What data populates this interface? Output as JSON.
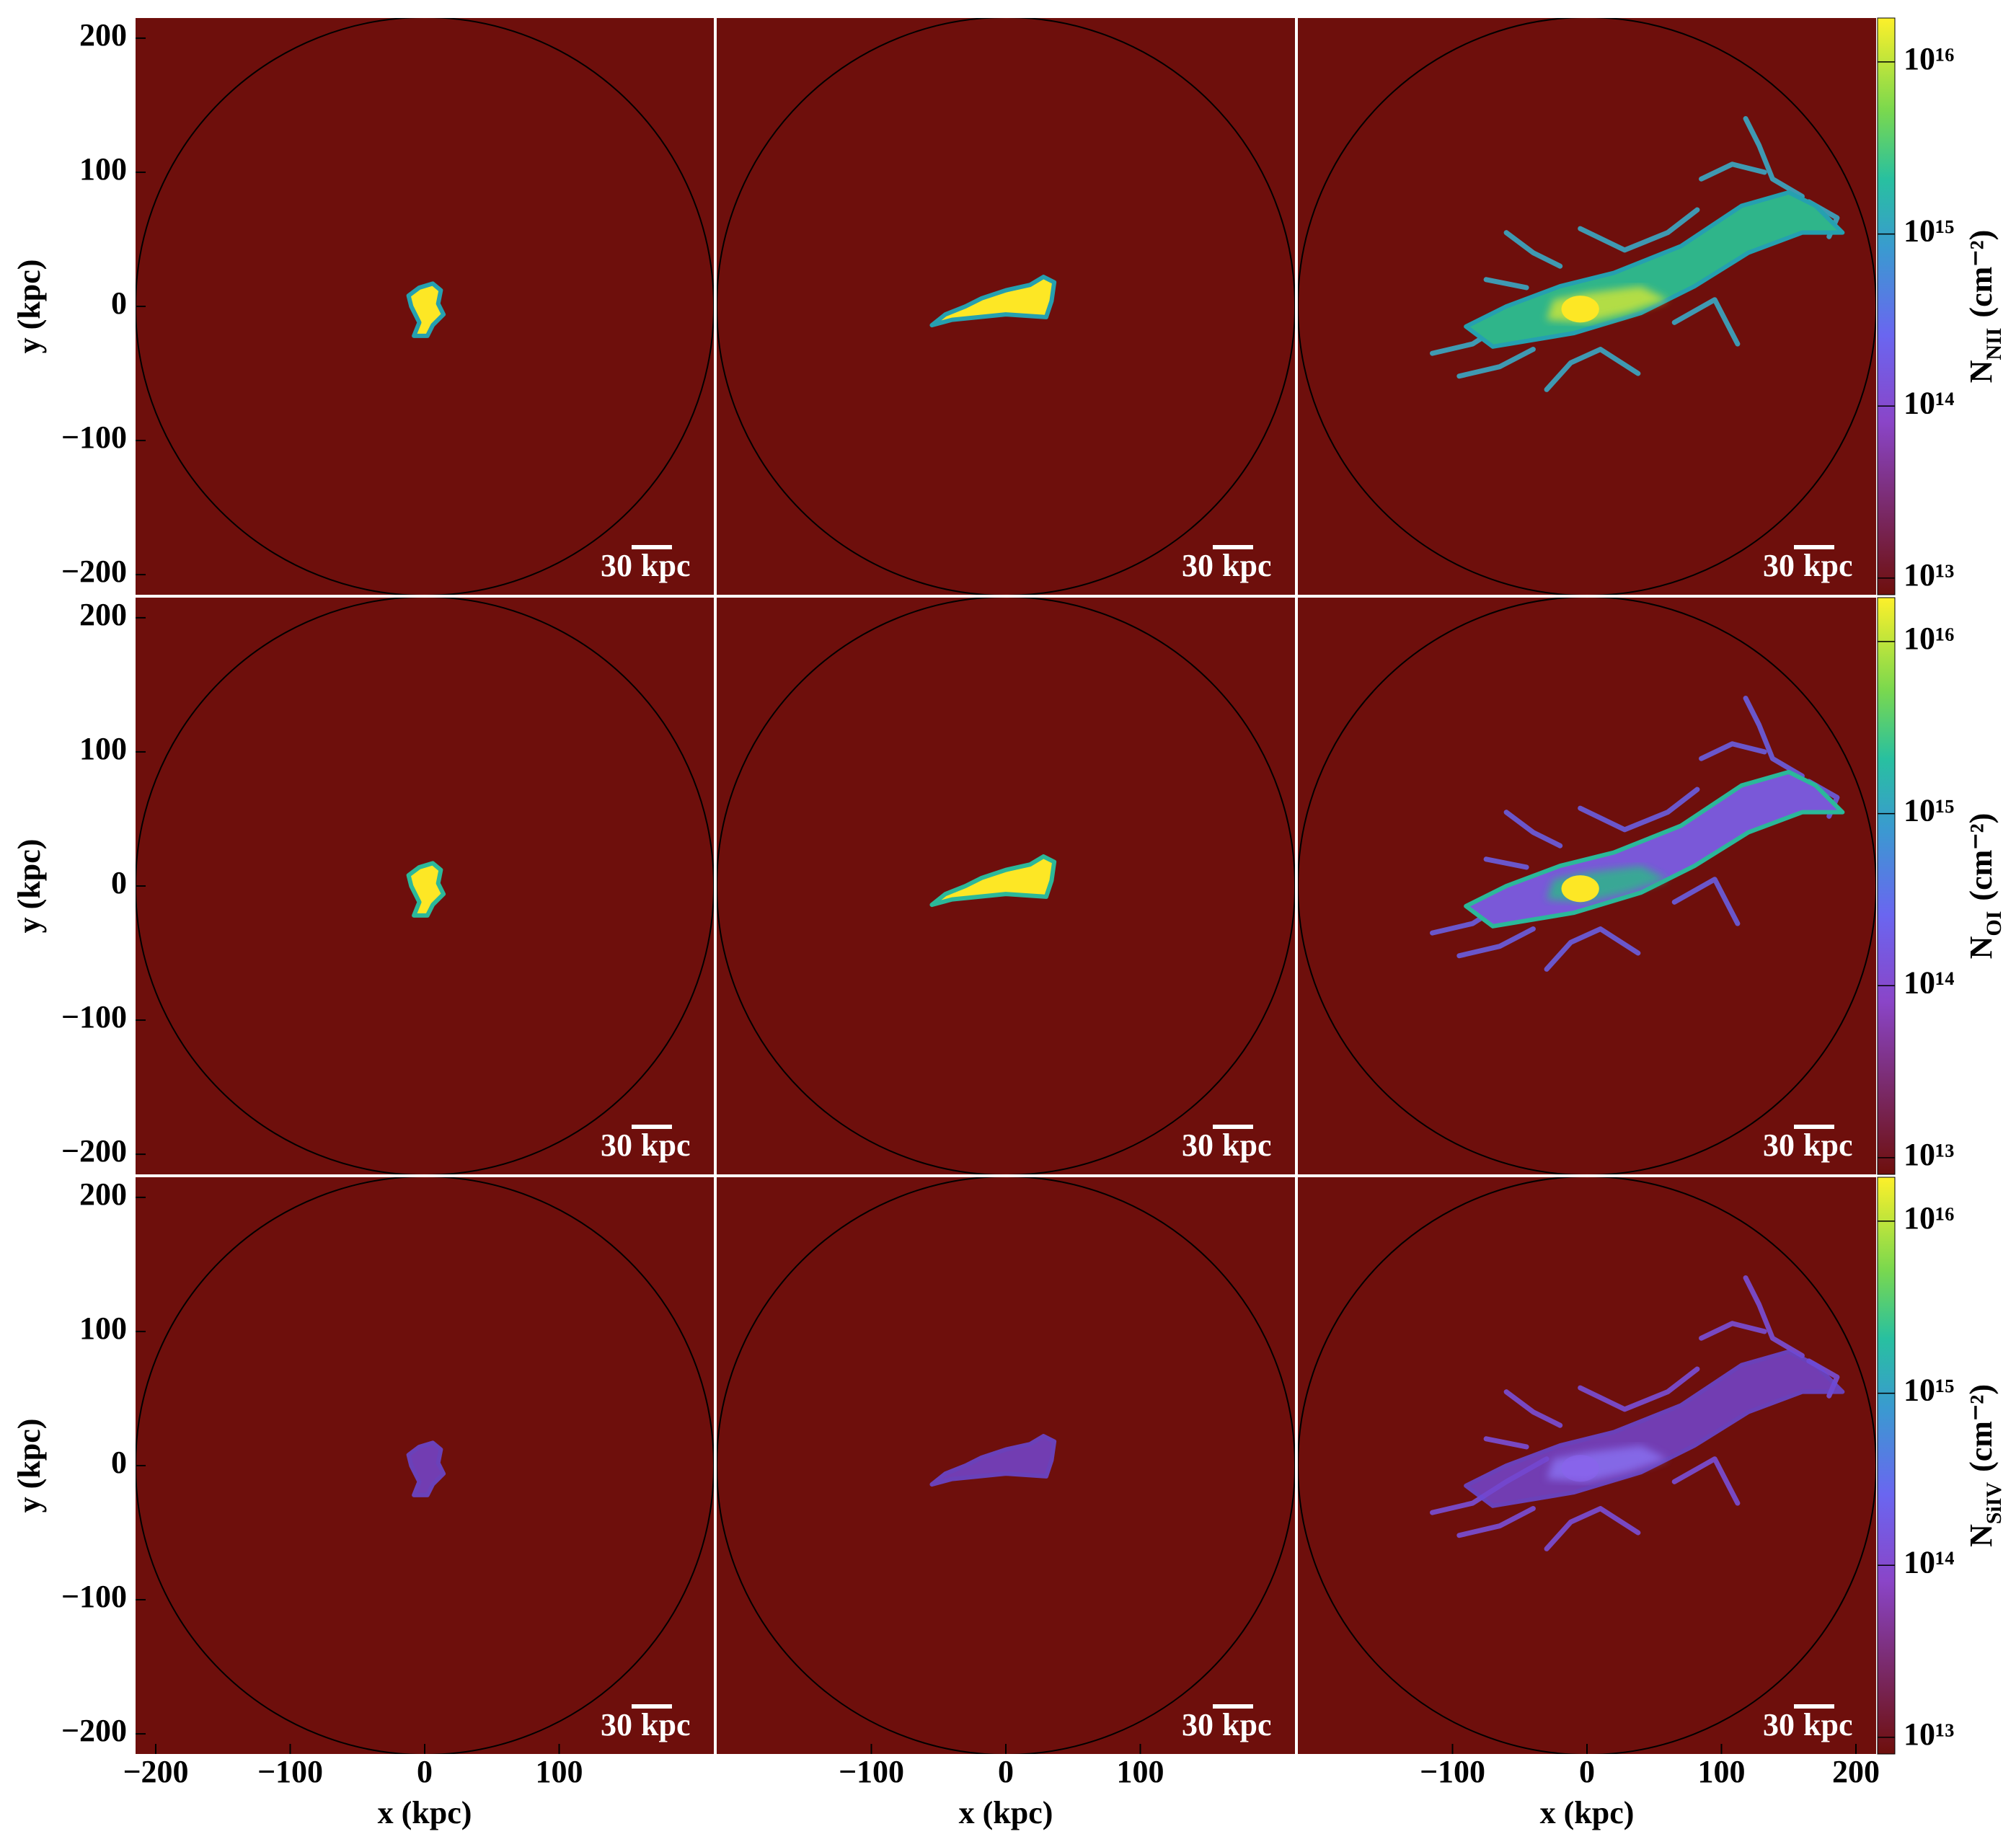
{
  "axes": {
    "x_label": "x (kpc)",
    "y_label": "y (kpc)",
    "xlim": [
      -215,
      215
    ],
    "ylim": [
      -215,
      215
    ],
    "yticks": [
      {
        "value": -200,
        "label": "−200"
      },
      {
        "value": -100,
        "label": "−100"
      },
      0,
      100,
      200
    ],
    "xticks_by_column": [
      [
        {
          "value": -200,
          "label": "−200"
        },
        {
          "value": -100,
          "label": "−100"
        },
        0,
        100
      ],
      [
        {
          "value": -100,
          "label": "−100"
        },
        0,
        100
      ],
      [
        {
          "value": -100,
          "label": "−100"
        },
        0,
        100,
        200
      ]
    ]
  },
  "colorbar": {
    "scale": "log",
    "clim": [
      8000000000000.0,
      1.8e+16
    ],
    "ticks": [
      {
        "value": 10000000000000.0,
        "label": "10¹³"
      },
      {
        "value": 100000000000000.0,
        "label": "10¹⁴"
      },
      {
        "value": 1000000000000000.0,
        "label": "10¹⁵"
      },
      {
        "value": 1e+16,
        "label": "10¹⁶"
      }
    ],
    "symbol": "N",
    "unit": "(cm⁻²)",
    "ions": [
      "NII",
      "OI",
      "SiIV"
    ]
  },
  "scale_bar": {
    "length": 30,
    "unit": "kpc"
  }
}
